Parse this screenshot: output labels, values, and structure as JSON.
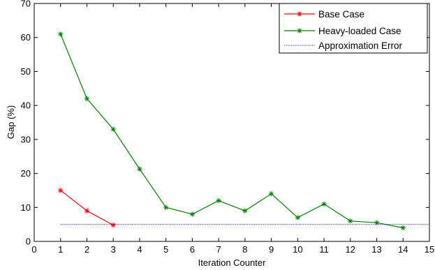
{
  "chart_data": {
    "type": "line",
    "xlabel": "Iteration Counter",
    "ylabel": "Gap (%)",
    "xlim": [
      0,
      15
    ],
    "ylim": [
      0,
      70
    ],
    "x_ticks": [
      "0",
      "1",
      "2",
      "3",
      "4",
      "5",
      "6",
      "7",
      "8",
      "9",
      "10",
      "11",
      "12",
      "13",
      "14",
      "15"
    ],
    "y_ticks": [
      "0",
      "10",
      "20",
      "30",
      "40",
      "50",
      "60",
      "70"
    ],
    "grid": false,
    "legend_position": "top-right",
    "series": [
      {
        "name": "Base Case",
        "color": "#ff0000",
        "marker": "star",
        "line_style": "solid",
        "x": [
          1,
          2,
          3
        ],
        "y": [
          15,
          9,
          4.8
        ]
      },
      {
        "name": "Heavy-loaded Case",
        "color": "#008000",
        "marker": "star",
        "line_style": "solid",
        "x": [
          1,
          2,
          3,
          4,
          5,
          6,
          7,
          8,
          9,
          10,
          11,
          12,
          13,
          14
        ],
        "y": [
          61,
          42,
          33,
          21.3,
          10,
          8,
          12,
          9,
          14,
          7,
          11,
          6,
          5.5,
          4
        ]
      },
      {
        "name": "Approximation Error",
        "color": "#0000cc",
        "marker": "none",
        "line_style": "dotted",
        "x": [
          1,
          15
        ],
        "y": [
          5,
          5
        ]
      }
    ]
  }
}
